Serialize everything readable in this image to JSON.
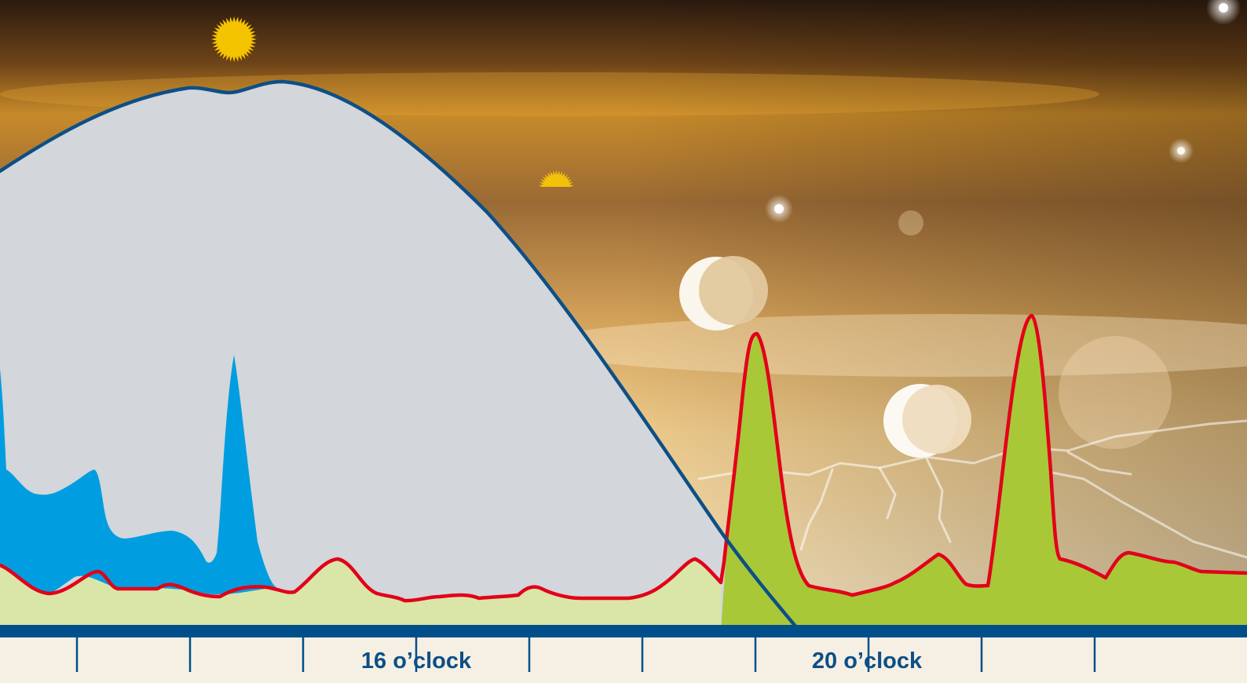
{
  "axis": {
    "labels": [
      {
        "text": "16 o’clock",
        "hour": 16
      },
      {
        "text": "20 o’clock",
        "hour": 20
      }
    ],
    "tick_count": 10
  },
  "colors": {
    "sky_top": "#2b1a0f",
    "sky_mid": "#c78a2a",
    "sky_low": "#f2d9a8",
    "daylight_area": "#d3d6da",
    "daylight_curve": "#0d4f86",
    "blue_area": "#009ee0",
    "red_curve": "#e2001a",
    "green_area_pale": "#d9e6a8",
    "green_area": "#a8c838",
    "axis_band": "#004f8a",
    "sun": "#f5c400",
    "axis_background": "#f6f0e4"
  },
  "icons": [
    "sun-icon",
    "setting-sun-icon",
    "moon-icon",
    "star-icon",
    "lightning-icon"
  ]
}
